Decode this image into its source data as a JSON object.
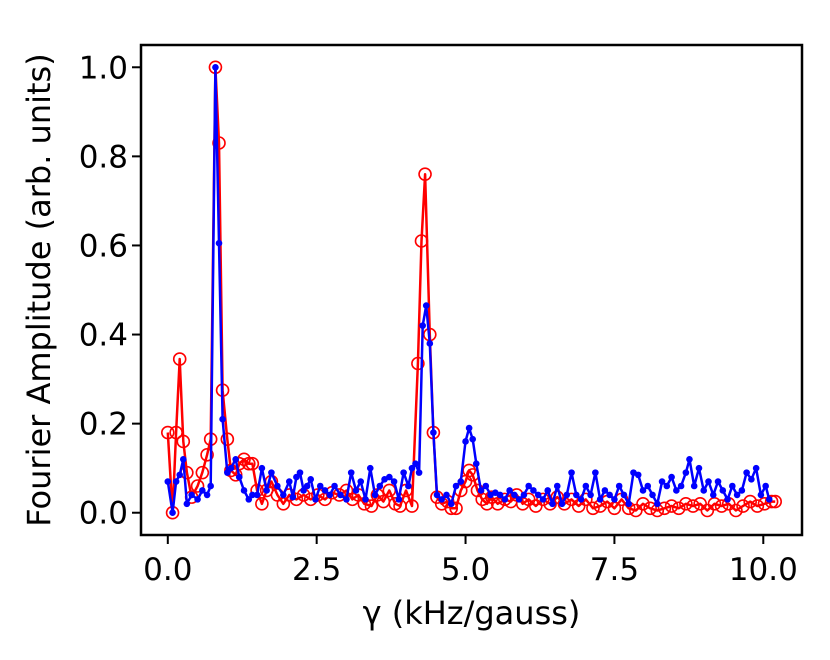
{
  "chart_data": {
    "type": "line",
    "xlabel": "γ (kHz/gauss)",
    "ylabel": "Fourier Amplitude (arb. units)",
    "xlim": [
      -0.45,
      10.65
    ],
    "ylim": [
      -0.05,
      1.05
    ],
    "xticks": [
      0.0,
      2.5,
      5.0,
      7.5,
      10.0
    ],
    "xtick_labels": [
      "0.0",
      "2.5",
      "5.0",
      "7.5",
      "10.0"
    ],
    "yticks": [
      0.0,
      0.2,
      0.4,
      0.6,
      0.8,
      1.0
    ],
    "ytick_labels": [
      "0.0",
      "0.2",
      "0.4",
      "0.6",
      "0.8",
      "1.0"
    ],
    "grid": false,
    "legend": "none",
    "series": [
      {
        "color": "#ff0000",
        "marker": "open-circle",
        "points": [
          [
            0.0,
            0.18
          ],
          [
            0.08,
            0.0
          ],
          [
            0.14,
            0.18
          ],
          [
            0.2,
            0.345
          ],
          [
            0.26,
            0.16
          ],
          [
            0.32,
            0.09
          ],
          [
            0.4,
            0.035
          ],
          [
            0.5,
            0.06
          ],
          [
            0.58,
            0.09
          ],
          [
            0.66,
            0.13
          ],
          [
            0.72,
            0.165
          ],
          [
            0.8,
            1.0
          ],
          [
            0.86,
            0.83
          ],
          [
            0.92,
            0.275
          ],
          [
            1.0,
            0.165
          ],
          [
            1.06,
            0.095
          ],
          [
            1.14,
            0.085
          ],
          [
            1.2,
            0.11
          ],
          [
            1.28,
            0.12
          ],
          [
            1.36,
            0.11
          ],
          [
            1.42,
            0.11
          ],
          [
            1.5,
            0.05
          ],
          [
            1.58,
            0.02
          ],
          [
            1.66,
            0.05
          ],
          [
            1.74,
            0.07
          ],
          [
            1.84,
            0.04
          ],
          [
            1.94,
            0.02
          ],
          [
            2.04,
            0.04
          ],
          [
            2.16,
            0.03
          ],
          [
            2.28,
            0.04
          ],
          [
            2.4,
            0.03
          ],
          [
            2.52,
            0.04
          ],
          [
            2.64,
            0.03
          ],
          [
            2.76,
            0.045
          ],
          [
            2.88,
            0.04
          ],
          [
            3.0,
            0.05
          ],
          [
            3.1,
            0.03
          ],
          [
            3.2,
            0.04
          ],
          [
            3.3,
            0.02
          ],
          [
            3.42,
            0.015
          ],
          [
            3.52,
            0.04
          ],
          [
            3.62,
            0.025
          ],
          [
            3.72,
            0.05
          ],
          [
            3.82,
            0.02
          ],
          [
            3.9,
            0.015
          ],
          [
            4.0,
            0.05
          ],
          [
            4.1,
            0.015
          ],
          [
            4.2,
            0.335
          ],
          [
            4.26,
            0.61
          ],
          [
            4.32,
            0.76
          ],
          [
            4.4,
            0.4
          ],
          [
            4.46,
            0.18
          ],
          [
            4.52,
            0.035
          ],
          [
            4.6,
            0.02
          ],
          [
            4.7,
            0.025
          ],
          [
            4.76,
            0.01
          ],
          [
            4.84,
            0.01
          ],
          [
            4.92,
            0.05
          ],
          [
            5.0,
            0.07
          ],
          [
            5.06,
            0.095
          ],
          [
            5.12,
            0.085
          ],
          [
            5.2,
            0.05
          ],
          [
            5.28,
            0.03
          ],
          [
            5.36,
            0.02
          ],
          [
            5.44,
            0.035
          ],
          [
            5.54,
            0.02
          ],
          [
            5.66,
            0.03
          ],
          [
            5.76,
            0.025
          ],
          [
            5.86,
            0.04
          ],
          [
            5.96,
            0.02
          ],
          [
            6.06,
            0.03
          ],
          [
            6.18,
            0.015
          ],
          [
            6.3,
            0.03
          ],
          [
            6.42,
            0.02
          ],
          [
            6.54,
            0.035
          ],
          [
            6.66,
            0.02
          ],
          [
            6.78,
            0.03
          ],
          [
            6.9,
            0.015
          ],
          [
            7.02,
            0.03
          ],
          [
            7.14,
            0.01
          ],
          [
            7.26,
            0.015
          ],
          [
            7.38,
            0.025
          ],
          [
            7.5,
            0.01
          ],
          [
            7.62,
            0.03
          ],
          [
            7.74,
            0.01
          ],
          [
            7.86,
            0.005
          ],
          [
            7.98,
            0.02
          ],
          [
            8.1,
            0.01
          ],
          [
            8.22,
            0.005
          ],
          [
            8.34,
            0.01
          ],
          [
            8.46,
            0.015
          ],
          [
            8.58,
            0.01
          ],
          [
            8.7,
            0.02
          ],
          [
            8.82,
            0.015
          ],
          [
            8.94,
            0.02
          ],
          [
            9.06,
            0.005
          ],
          [
            9.18,
            0.02
          ],
          [
            9.3,
            0.015
          ],
          [
            9.42,
            0.02
          ],
          [
            9.54,
            0.005
          ],
          [
            9.66,
            0.015
          ],
          [
            9.78,
            0.025
          ],
          [
            9.9,
            0.015
          ],
          [
            10.02,
            0.02
          ],
          [
            10.14,
            0.025
          ],
          [
            10.2,
            0.025
          ]
        ]
      },
      {
        "color": "#0000ff",
        "marker": "filled-dot",
        "points": [
          [
            0.0,
            0.07
          ],
          [
            0.08,
            0.0
          ],
          [
            0.14,
            0.07
          ],
          [
            0.2,
            0.085
          ],
          [
            0.26,
            0.12
          ],
          [
            0.32,
            0.02
          ],
          [
            0.4,
            0.04
          ],
          [
            0.5,
            0.03
          ],
          [
            0.58,
            0.05
          ],
          [
            0.66,
            0.04
          ],
          [
            0.72,
            0.06
          ],
          [
            0.8,
            1.0
          ],
          [
            0.86,
            0.605
          ],
          [
            0.92,
            0.21
          ],
          [
            1.0,
            0.09
          ],
          [
            1.06,
            0.1
          ],
          [
            1.14,
            0.12
          ],
          [
            1.2,
            0.08
          ],
          [
            1.28,
            0.05
          ],
          [
            1.36,
            0.03
          ],
          [
            1.42,
            0.04
          ],
          [
            1.5,
            0.04
          ],
          [
            1.58,
            0.1
          ],
          [
            1.66,
            0.05
          ],
          [
            1.74,
            0.09
          ],
          [
            1.84,
            0.06
          ],
          [
            1.94,
            0.04
          ],
          [
            2.04,
            0.07
          ],
          [
            2.1,
            0.035
          ],
          [
            2.16,
            0.08
          ],
          [
            2.22,
            0.09
          ],
          [
            2.28,
            0.05
          ],
          [
            2.34,
            0.06
          ],
          [
            2.4,
            0.075
          ],
          [
            2.48,
            0.03
          ],
          [
            2.56,
            0.06
          ],
          [
            2.64,
            0.05
          ],
          [
            2.72,
            0.04
          ],
          [
            2.8,
            0.06
          ],
          [
            2.9,
            0.04
          ],
          [
            3.0,
            0.03
          ],
          [
            3.08,
            0.09
          ],
          [
            3.16,
            0.05
          ],
          [
            3.24,
            0.07
          ],
          [
            3.32,
            0.03
          ],
          [
            3.4,
            0.1
          ],
          [
            3.48,
            0.04
          ],
          [
            3.56,
            0.06
          ],
          [
            3.64,
            0.075
          ],
          [
            3.72,
            0.08
          ],
          [
            3.8,
            0.07
          ],
          [
            3.88,
            0.03
          ],
          [
            3.96,
            0.09
          ],
          [
            4.04,
            0.06
          ],
          [
            4.1,
            0.1
          ],
          [
            4.16,
            0.11
          ],
          [
            4.22,
            0.09
          ],
          [
            4.28,
            0.42
          ],
          [
            4.34,
            0.465
          ],
          [
            4.4,
            0.38
          ],
          [
            4.46,
            0.18
          ],
          [
            4.52,
            0.04
          ],
          [
            4.6,
            0.03
          ],
          [
            4.68,
            0.04
          ],
          [
            4.76,
            0.02
          ],
          [
            4.84,
            0.06
          ],
          [
            4.92,
            0.07
          ],
          [
            5.0,
            0.16
          ],
          [
            5.06,
            0.19
          ],
          [
            5.12,
            0.165
          ],
          [
            5.18,
            0.11
          ],
          [
            5.26,
            0.05
          ],
          [
            5.34,
            0.06
          ],
          [
            5.42,
            0.04
          ],
          [
            5.5,
            0.045
          ],
          [
            5.58,
            0.04
          ],
          [
            5.66,
            0.03
          ],
          [
            5.74,
            0.05
          ],
          [
            5.82,
            0.04
          ],
          [
            5.9,
            0.03
          ],
          [
            5.98,
            0.04
          ],
          [
            6.06,
            0.06
          ],
          [
            6.14,
            0.05
          ],
          [
            6.22,
            0.04
          ],
          [
            6.3,
            0.03
          ],
          [
            6.38,
            0.05
          ],
          [
            6.46,
            0.02
          ],
          [
            6.54,
            0.06
          ],
          [
            6.62,
            0.02
          ],
          [
            6.7,
            0.04
          ],
          [
            6.78,
            0.09
          ],
          [
            6.86,
            0.04
          ],
          [
            6.94,
            0.03
          ],
          [
            7.02,
            0.06
          ],
          [
            7.1,
            0.04
          ],
          [
            7.18,
            0.09
          ],
          [
            7.26,
            0.03
          ],
          [
            7.34,
            0.05
          ],
          [
            7.42,
            0.04
          ],
          [
            7.5,
            0.03
          ],
          [
            7.58,
            0.06
          ],
          [
            7.66,
            0.04
          ],
          [
            7.74,
            0.02
          ],
          [
            7.82,
            0.09
          ],
          [
            7.9,
            0.085
          ],
          [
            7.98,
            0.05
          ],
          [
            8.06,
            0.06
          ],
          [
            8.14,
            0.04
          ],
          [
            8.22,
            0.02
          ],
          [
            8.3,
            0.07
          ],
          [
            8.38,
            0.06
          ],
          [
            8.46,
            0.08
          ],
          [
            8.54,
            0.05
          ],
          [
            8.62,
            0.06
          ],
          [
            8.7,
            0.09
          ],
          [
            8.76,
            0.12
          ],
          [
            8.84,
            0.06
          ],
          [
            8.92,
            0.1
          ],
          [
            9.0,
            0.05
          ],
          [
            9.08,
            0.07
          ],
          [
            9.16,
            0.04
          ],
          [
            9.24,
            0.07
          ],
          [
            9.32,
            0.05
          ],
          [
            9.4,
            0.03
          ],
          [
            9.48,
            0.06
          ],
          [
            9.56,
            0.04
          ],
          [
            9.64,
            0.05
          ],
          [
            9.72,
            0.09
          ],
          [
            9.8,
            0.075
          ],
          [
            9.88,
            0.1
          ],
          [
            9.96,
            0.04
          ],
          [
            10.04,
            0.06
          ],
          [
            10.1,
            0.03
          ]
        ]
      }
    ]
  }
}
